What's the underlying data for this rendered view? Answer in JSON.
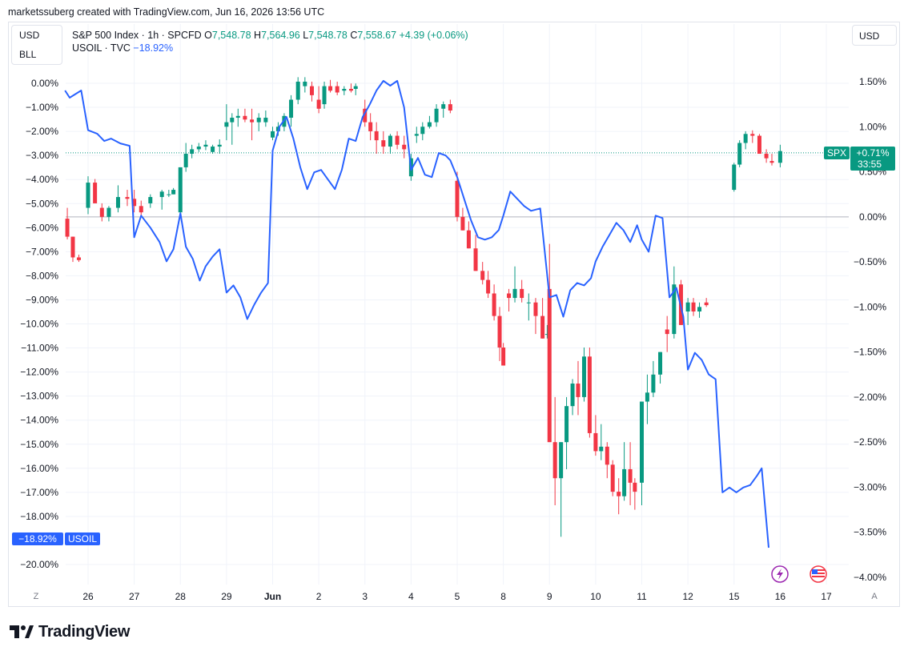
{
  "header": {
    "attribution": "marketssuberg created with TradingView.com, Jun 16, 2026 13:56 UTC"
  },
  "currency_left": "USD",
  "currency_left2": "BLL",
  "currency_right": "USD",
  "legend": {
    "spx_title": "S&P 500 Index · 1h · SPCFD",
    "o_label": "O",
    "o_value": "7,548.78",
    "h_label": "H",
    "h_value": "7,564.96",
    "l_label": "L",
    "l_value": "7,548.78",
    "c_label": "C",
    "c_value": "7,558.67",
    "change": "+4.39 (+0.06%)",
    "usoil_title": "USOIL · TVC",
    "usoil_change": "−18.92%"
  },
  "colors": {
    "up": "#089981",
    "down": "#f23645",
    "oil": "#2962ff",
    "grid": "#f0f3fa",
    "axis_text": "#131722"
  },
  "chart_data": {
    "type": "candlestick+line",
    "series": [
      {
        "name": "SPX",
        "kind": "candlestick",
        "axis": "right"
      },
      {
        "name": "USOIL",
        "kind": "line",
        "axis": "left"
      }
    ],
    "left_axis": {
      "range": [
        -20.6,
        0.8
      ],
      "ticks": [
        0,
        -1,
        -2,
        -3,
        -4,
        -5,
        -6,
        -7,
        -8,
        -9,
        -10,
        -11,
        -12,
        -13,
        -14,
        -15,
        -16,
        -17,
        -18,
        -20
      ],
      "tick_labels": [
        "0.00%",
        "−1.00%",
        "−2.00%",
        "−3.00%",
        "−4.00%",
        "−5.00%",
        "−6.00%",
        "−7.00%",
        "−8.00%",
        "−9.00%",
        "−10.00%",
        "−11.00%",
        "−12.00%",
        "−13.00%",
        "−14.00%",
        "−15.00%",
        "−16.00%",
        "−17.00%",
        "−18.00%",
        "−20.00%"
      ]
    },
    "right_axis": {
      "range": [
        -4.1,
        2.0
      ],
      "ticks": [
        1.5,
        1.0,
        0.5,
        0,
        -0.5,
        -1.0,
        -1.5,
        -2.0,
        -2.5,
        -3.0,
        -3.5,
        -4.0
      ],
      "tick_labels": [
        "1.50%",
        "1.00%",
        "0.50%",
        "0.00%",
        "−0.50%",
        "−1.00%",
        "−1.50%",
        "−2.00%",
        "−2.50%",
        "−3.00%",
        "−3.50%",
        "−4.00%"
      ]
    },
    "x_axis": {
      "range": [
        25.55,
        17.45
      ],
      "labels": [
        {
          "text": "26",
          "x": 26
        },
        {
          "text": "27",
          "x": 27
        },
        {
          "text": "28",
          "x": 28
        },
        {
          "text": "29",
          "x": 29
        },
        {
          "text": "Jun",
          "x": 30
        },
        {
          "text": "2",
          "x": 31
        },
        {
          "text": "3",
          "x": 32
        },
        {
          "text": "4",
          "x": 33
        },
        {
          "text": "5",
          "x": 34
        },
        {
          "text": "8",
          "x": 35
        },
        {
          "text": "9",
          "x": 36
        },
        {
          "text": "10",
          "x": 37
        },
        {
          "text": "11",
          "x": 38
        },
        {
          "text": "12",
          "x": 39
        },
        {
          "text": "15",
          "x": 40
        },
        {
          "text": "16",
          "x": 41
        },
        {
          "text": "17",
          "x": 42
        }
      ],
      "zoom_left": "Z",
      "zoom_right": "A"
    },
    "spx_candles": [
      [
        25.55,
        -0.02,
        0.1,
        -0.25,
        -0.22
      ],
      [
        25.67,
        -0.22,
        -0.22,
        -0.5,
        -0.45
      ],
      [
        25.8,
        -0.45,
        -0.42,
        -0.5,
        -0.48
      ],
      [
        26.0,
        0.1,
        0.45,
        0.03,
        0.38
      ],
      [
        26.15,
        0.38,
        0.42,
        0.2,
        0.15
      ],
      [
        26.3,
        0.1,
        0.15,
        -0.05,
        0.0
      ],
      [
        26.45,
        0.0,
        0.12,
        -0.05,
        0.1
      ],
      [
        26.65,
        0.1,
        0.35,
        0.05,
        0.22
      ],
      [
        26.85,
        0.22,
        0.3,
        0.12,
        0.2
      ],
      [
        27.0,
        0.2,
        0.3,
        0.05,
        0.12
      ],
      [
        27.15,
        0.12,
        0.18,
        0.0,
        0.05
      ],
      [
        27.35,
        0.15,
        0.25,
        0.1,
        0.22
      ],
      [
        27.6,
        0.22,
        0.3,
        0.08,
        0.28
      ],
      [
        27.75,
        0.25,
        0.3,
        0.22,
        0.25
      ],
      [
        27.85,
        0.25,
        0.32,
        0.25,
        0.3
      ],
      [
        28.0,
        0.05,
        0.25,
        0.0,
        0.55
      ],
      [
        28.12,
        0.55,
        0.82,
        0.5,
        0.7
      ],
      [
        28.25,
        0.7,
        0.8,
        0.65,
        0.75
      ],
      [
        28.4,
        0.75,
        0.82,
        0.72,
        0.78
      ],
      [
        28.55,
        0.78,
        0.85,
        0.74,
        0.8
      ],
      [
        28.7,
        0.72,
        0.8,
        0.7,
        0.78
      ],
      [
        28.85,
        0.78,
        0.86,
        0.7,
        0.8
      ],
      [
        29.0,
        1.0,
        1.25,
        0.85,
        1.05
      ],
      [
        29.12,
        1.05,
        1.15,
        0.8,
        1.1
      ],
      [
        29.25,
        1.1,
        1.2,
        1.0,
        1.12
      ],
      [
        29.4,
        1.12,
        1.2,
        1.05,
        1.08
      ],
      [
        29.55,
        1.08,
        1.2,
        0.85,
        1.05
      ],
      [
        29.7,
        1.05,
        1.15,
        0.95,
        1.1
      ],
      [
        29.85,
        1.05,
        1.18,
        1.0,
        1.1
      ],
      [
        30.0,
        0.88,
        1.0,
        0.85,
        0.95
      ],
      [
        30.12,
        0.95,
        1.05,
        0.9,
        1.0
      ],
      [
        30.25,
        1.0,
        1.15,
        0.95,
        1.12
      ],
      [
        30.4,
        1.1,
        1.35,
        1.0,
        1.3
      ],
      [
        30.55,
        1.3,
        1.55,
        1.25,
        1.5
      ],
      [
        30.7,
        1.45,
        1.55,
        1.38,
        1.5
      ],
      [
        30.85,
        1.45,
        1.5,
        1.28,
        1.35
      ],
      [
        31.0,
        1.3,
        1.45,
        1.15,
        1.2
      ],
      [
        31.12,
        1.25,
        1.5,
        1.2,
        1.45
      ],
      [
        31.25,
        1.45,
        1.52,
        1.38,
        1.4
      ],
      [
        31.4,
        1.45,
        1.5,
        1.35,
        1.38
      ],
      [
        31.55,
        1.4,
        1.45,
        1.35,
        1.42
      ],
      [
        31.7,
        1.42,
        1.48,
        1.38,
        1.4
      ],
      [
        31.8,
        1.42,
        1.48,
        1.35,
        1.45
      ],
      [
        32.0,
        1.2,
        1.3,
        1.0,
        1.05
      ],
      [
        32.12,
        1.05,
        1.15,
        0.85,
        0.95
      ],
      [
        32.25,
        0.95,
        1.05,
        0.7,
        0.85
      ],
      [
        32.4,
        0.85,
        0.95,
        0.7,
        0.78
      ],
      [
        32.55,
        0.78,
        0.92,
        0.7,
        0.9
      ],
      [
        32.7,
        0.9,
        0.95,
        0.75,
        0.8
      ],
      [
        32.85,
        0.8,
        0.9,
        0.65,
        0.75
      ],
      [
        33.0,
        0.45,
        0.7,
        0.4,
        0.65
      ],
      [
        33.12,
        0.9,
        1.0,
        0.82,
        0.92
      ],
      [
        33.25,
        0.92,
        1.05,
        0.85,
        1.0
      ],
      [
        33.4,
        1.0,
        1.12,
        0.98,
        1.05
      ],
      [
        33.55,
        1.05,
        1.25,
        1.0,
        1.2
      ],
      [
        33.7,
        1.2,
        1.28,
        1.1,
        1.25
      ],
      [
        33.85,
        1.25,
        1.3,
        1.15,
        1.18
      ],
      [
        34.0,
        0.4,
        0.5,
        -0.05,
        0.0
      ],
      [
        34.12,
        0.0,
        0.1,
        -0.15,
        -0.15
      ],
      [
        34.25,
        -0.15,
        -0.05,
        -0.35,
        -0.35
      ],
      [
        34.4,
        -0.35,
        -0.2,
        -0.6,
        -0.6
      ],
      [
        34.55,
        -0.6,
        -0.5,
        -0.75,
        -0.7
      ],
      [
        34.67,
        -0.7,
        -0.6,
        -0.9,
        -0.85
      ],
      [
        34.8,
        -0.85,
        -0.75,
        -1.15,
        -1.1
      ],
      [
        34.92,
        -1.1,
        -1.0,
        -1.6,
        -1.45
      ],
      [
        35.0,
        -1.45,
        -1.4,
        -1.65,
        -1.65
      ],
      [
        35.12,
        -0.85,
        -0.8,
        -1.05,
        -0.9
      ],
      [
        35.25,
        -0.9,
        -0.55,
        -0.95,
        -0.8
      ],
      [
        35.4,
        -0.8,
        -0.7,
        -0.95,
        -0.9
      ],
      [
        35.55,
        -0.95,
        -0.85,
        -1.15,
        -0.95
      ],
      [
        35.7,
        -0.95,
        -0.9,
        -1.3,
        -1.1
      ],
      [
        35.85,
        -1.1,
        -0.9,
        -1.35,
        -1.35
      ],
      [
        35.95,
        -1.3,
        -1.2,
        -1.35,
        -1.3
      ],
      [
        36.0,
        -0.8,
        -0.3,
        -0.9,
        -2.5
      ],
      [
        36.12,
        -2.5,
        -2.0,
        -3.2,
        -2.9
      ],
      [
        36.25,
        -2.9,
        -2.5,
        -3.55,
        -2.5
      ],
      [
        36.37,
        -2.5,
        -2.0,
        -2.8,
        -2.1
      ],
      [
        36.5,
        -2.1,
        -1.8,
        -2.2,
        -1.85
      ],
      [
        36.62,
        -1.85,
        -1.6,
        -2.2,
        -2.0
      ],
      [
        36.75,
        -2.0,
        -1.45,
        -2.05,
        -1.55
      ],
      [
        36.87,
        -1.55,
        -1.45,
        -2.45,
        -2.4
      ],
      [
        37.0,
        -2.4,
        -2.2,
        -2.65,
        -2.6
      ],
      [
        37.12,
        -2.6,
        -2.3,
        -2.7,
        -2.55
      ],
      [
        37.25,
        -2.55,
        -2.5,
        -2.9,
        -2.75
      ],
      [
        37.37,
        -2.75,
        -2.7,
        -3.1,
        -3.05
      ],
      [
        37.5,
        -3.05,
        -2.9,
        -3.3,
        -3.1
      ],
      [
        37.62,
        -3.1,
        -2.5,
        -3.15,
        -2.8
      ],
      [
        37.75,
        -2.8,
        -2.5,
        -3.2,
        -2.95
      ],
      [
        37.85,
        -2.95,
        -2.9,
        -3.25,
        -3.05
      ],
      [
        38.0,
        -2.95,
        -2.6,
        -3.2,
        -2.05
      ],
      [
        38.12,
        -2.05,
        -1.75,
        -2.3,
        -1.95
      ],
      [
        38.25,
        -1.95,
        -1.6,
        -2.0,
        -1.75
      ],
      [
        38.4,
        -1.75,
        -1.5,
        -1.85,
        -1.5
      ],
      [
        38.55,
        -1.25,
        -1.1,
        -1.5,
        -1.3
      ],
      [
        38.7,
        -1.3,
        -0.55,
        -1.35,
        -0.75
      ],
      [
        38.85,
        -0.75,
        -0.7,
        -1.2,
        -1.2
      ],
      [
        39.0,
        -1.05,
        -0.9,
        -1.2,
        -0.95
      ],
      [
        39.12,
        -0.95,
        -0.9,
        -1.1,
        -1.05
      ],
      [
        39.25,
        -1.05,
        -0.95,
        -1.12,
        -1.0
      ],
      [
        39.4,
        -0.95,
        -0.9,
        -1.0,
        -0.98
      ],
      [
        40.0,
        0.3,
        0.6,
        0.28,
        0.58
      ],
      [
        40.12,
        0.58,
        0.85,
        0.55,
        0.82
      ],
      [
        40.25,
        0.82,
        0.95,
        0.75,
        0.92
      ],
      [
        40.4,
        0.92,
        0.96,
        0.82,
        0.9
      ],
      [
        40.55,
        0.9,
        0.92,
        0.7,
        0.7
      ],
      [
        40.7,
        0.7,
        0.75,
        0.6,
        0.65
      ],
      [
        40.82,
        0.62,
        0.7,
        0.57,
        0.6
      ],
      [
        41.0,
        0.6,
        0.8,
        0.55,
        0.73
      ]
    ],
    "usoil_line": [
      [
        25.5,
        -0.3
      ],
      [
        25.6,
        -0.6
      ],
      [
        25.85,
        -0.3
      ],
      [
        26.0,
        -1.95
      ],
      [
        26.2,
        -2.1
      ],
      [
        26.35,
        -2.4
      ],
      [
        26.5,
        -2.3
      ],
      [
        26.7,
        -2.5
      ],
      [
        26.9,
        -2.6
      ],
      [
        27.0,
        -6.4
      ],
      [
        27.15,
        -5.5
      ],
      [
        27.35,
        -6.0
      ],
      [
        27.55,
        -6.6
      ],
      [
        27.7,
        -7.4
      ],
      [
        27.85,
        -6.9
      ],
      [
        28.0,
        -5.4
      ],
      [
        28.12,
        -6.8
      ],
      [
        28.27,
        -7.3
      ],
      [
        28.42,
        -8.2
      ],
      [
        28.55,
        -7.6
      ],
      [
        28.7,
        -7.2
      ],
      [
        28.85,
        -6.9
      ],
      [
        29.0,
        -8.7
      ],
      [
        29.15,
        -8.4
      ],
      [
        29.3,
        -8.9
      ],
      [
        29.45,
        -9.8
      ],
      [
        29.6,
        -9.2
      ],
      [
        29.75,
        -8.7
      ],
      [
        29.9,
        -8.3
      ],
      [
        30.0,
        -2.8
      ],
      [
        30.15,
        -1.8
      ],
      [
        30.3,
        -1.4
      ],
      [
        30.45,
        -2.3
      ],
      [
        30.6,
        -3.5
      ],
      [
        30.75,
        -4.4
      ],
      [
        30.9,
        -3.7
      ],
      [
        31.05,
        -3.6
      ],
      [
        31.2,
        -4.0
      ],
      [
        31.35,
        -4.4
      ],
      [
        31.5,
        -3.6
      ],
      [
        31.65,
        -2.3
      ],
      [
        31.8,
        -2.4
      ],
      [
        31.95,
        -1.4
      ],
      [
        32.1,
        -0.9
      ],
      [
        32.25,
        -0.3
      ],
      [
        32.4,
        0.1
      ],
      [
        32.55,
        -0.1
      ],
      [
        32.7,
        0.1
      ],
      [
        32.85,
        -1.0
      ],
      [
        33.0,
        -3.6
      ],
      [
        33.15,
        -3.1
      ],
      [
        33.3,
        -3.8
      ],
      [
        33.45,
        -3.9
      ],
      [
        33.6,
        -2.9
      ],
      [
        33.75,
        -3.0
      ],
      [
        33.85,
        -3.2
      ],
      [
        34.0,
        -3.9
      ],
      [
        34.15,
        -4.8
      ],
      [
        34.3,
        -5.7
      ],
      [
        34.45,
        -6.4
      ],
      [
        34.6,
        -6.5
      ],
      [
        34.75,
        -6.4
      ],
      [
        34.9,
        -6.1
      ],
      [
        35.0,
        -5.5
      ],
      [
        35.15,
        -4.5
      ],
      [
        35.3,
        -4.8
      ],
      [
        35.45,
        -5.1
      ],
      [
        35.6,
        -5.3
      ],
      [
        35.8,
        -5.2
      ],
      [
        36.0,
        -8.9
      ],
      [
        36.15,
        -8.8
      ],
      [
        36.3,
        -9.7
      ],
      [
        36.45,
        -8.6
      ],
      [
        36.6,
        -8.3
      ],
      [
        36.75,
        -8.4
      ],
      [
        36.9,
        -8.1
      ],
      [
        37.0,
        -7.4
      ],
      [
        37.15,
        -6.8
      ],
      [
        37.3,
        -6.3
      ],
      [
        37.45,
        -5.8
      ],
      [
        37.6,
        -6.1
      ],
      [
        37.75,
        -6.6
      ],
      [
        37.9,
        -5.9
      ],
      [
        38.0,
        -6.5
      ],
      [
        38.15,
        -7.0
      ],
      [
        38.3,
        -5.5
      ],
      [
        38.45,
        -5.6
      ],
      [
        38.6,
        -8.9
      ],
      [
        38.75,
        -8.5
      ],
      [
        38.9,
        -9.7
      ],
      [
        39.0,
        -11.9
      ],
      [
        39.15,
        -11.2
      ],
      [
        39.3,
        -11.5
      ],
      [
        39.45,
        -12.1
      ],
      [
        39.6,
        -12.3
      ],
      [
        39.75,
        -17.0
      ],
      [
        39.9,
        -16.8
      ],
      [
        40.05,
        -17.0
      ],
      [
        40.2,
        -16.8
      ],
      [
        40.35,
        -16.7
      ],
      [
        40.5,
        -16.3
      ],
      [
        40.6,
        -16.0
      ],
      [
        40.75,
        -19.3
      ]
    ],
    "last_value_labels": {
      "spx_symbol": "SPX",
      "spx_change": "+0.71%",
      "spx_countdown": "33:55",
      "spx_value": 0.71,
      "usoil_value_text": "−18.92%",
      "usoil_symbol": "USOIL",
      "usoil_value": -18.92
    }
  }
}
